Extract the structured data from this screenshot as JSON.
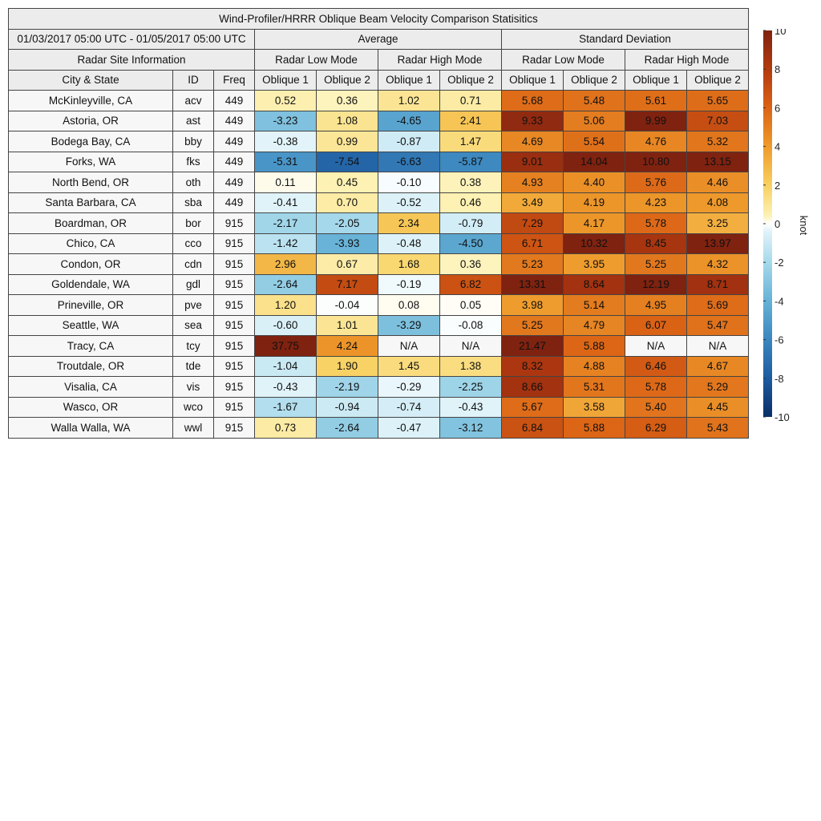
{
  "title": "Wind-Profiler/HRRR Oblique Beam Velocity Comparison Statisitics",
  "date_range": "01/03/2017 05:00 UTC - 01/05/2017 05:00 UTC",
  "group_headers": {
    "average": "Average",
    "std": "Standard Deviation",
    "site_info": "Radar Site Information"
  },
  "mode_headers": [
    "Radar Low Mode",
    "Radar High Mode",
    "Radar Low Mode",
    "Radar High Mode"
  ],
  "columns": [
    "City & State",
    "ID",
    "Freq",
    "Oblique 1",
    "Oblique 2",
    "Oblique 1",
    "Oblique 2",
    "Oblique 1",
    "Oblique 2",
    "Oblique 1",
    "Oblique 2"
  ],
  "colorbar": {
    "label": "knot",
    "min": -10,
    "max": 10,
    "ticks": [
      "10",
      "8",
      "6",
      "4",
      "2",
      "0",
      "-2",
      "-4",
      "-6",
      "-8",
      "-10"
    ]
  },
  "chart_data": {
    "type": "table",
    "title": "Wind-Profiler/HRRR Oblique Beam Velocity Comparison Statisitics",
    "rows": [
      {
        "city": "McKinleyville, CA",
        "id": "acv",
        "freq": "449",
        "values": [
          "0.52",
          "0.36",
          "1.02",
          "0.71",
          "5.68",
          "5.48",
          "5.61",
          "5.65"
        ]
      },
      {
        "city": "Astoria, OR",
        "id": "ast",
        "freq": "449",
        "values": [
          "-3.23",
          "1.08",
          "-4.65",
          "2.41",
          "9.33",
          "5.06",
          "9.99",
          "7.03"
        ]
      },
      {
        "city": "Bodega Bay, CA",
        "id": "bby",
        "freq": "449",
        "values": [
          "-0.38",
          "0.99",
          "-0.87",
          "1.47",
          "4.69",
          "5.54",
          "4.76",
          "5.32"
        ]
      },
      {
        "city": "Forks, WA",
        "id": "fks",
        "freq": "449",
        "values": [
          "-5.31",
          "-7.54",
          "-6.63",
          "-5.87",
          "9.01",
          "14.04",
          "10.80",
          "13.15"
        ]
      },
      {
        "city": "North Bend, OR",
        "id": "oth",
        "freq": "449",
        "values": [
          "0.11",
          "0.45",
          "-0.10",
          "0.38",
          "4.93",
          "4.40",
          "5.76",
          "4.46"
        ]
      },
      {
        "city": "Santa Barbara, CA",
        "id": "sba",
        "freq": "449",
        "values": [
          "-0.41",
          "0.70",
          "-0.52",
          "0.46",
          "3.49",
          "4.19",
          "4.23",
          "4.08"
        ]
      },
      {
        "city": "Boardman, OR",
        "id": "bor",
        "freq": "915",
        "values": [
          "-2.17",
          "-2.05",
          "2.34",
          "-0.79",
          "7.29",
          "4.17",
          "5.78",
          "3.25"
        ]
      },
      {
        "city": "Chico, CA",
        "id": "cco",
        "freq": "915",
        "values": [
          "-1.42",
          "-3.93",
          "-0.48",
          "-4.50",
          "6.71",
          "10.32",
          "8.45",
          "13.97"
        ]
      },
      {
        "city": "Condon, OR",
        "id": "cdn",
        "freq": "915",
        "values": [
          "2.96",
          "0.67",
          "1.68",
          "0.36",
          "5.23",
          "3.95",
          "5.25",
          "4.32"
        ]
      },
      {
        "city": "Goldendale, WA",
        "id": "gdl",
        "freq": "915",
        "values": [
          "-2.64",
          "7.17",
          "-0.19",
          "6.82",
          "13.31",
          "8.64",
          "12.19",
          "8.71"
        ]
      },
      {
        "city": "Prineville, OR",
        "id": "pve",
        "freq": "915",
        "values": [
          "1.20",
          "-0.04",
          "0.08",
          "0.05",
          "3.98",
          "5.14",
          "4.95",
          "5.69"
        ]
      },
      {
        "city": "Seattle, WA",
        "id": "sea",
        "freq": "915",
        "values": [
          "-0.60",
          "1.01",
          "-3.29",
          "-0.08",
          "5.25",
          "4.79",
          "6.07",
          "5.47"
        ]
      },
      {
        "city": "Tracy, CA",
        "id": "tcy",
        "freq": "915",
        "values": [
          "37.75",
          "4.24",
          "N/A",
          "N/A",
          "21.47",
          "5.88",
          "N/A",
          "N/A"
        ]
      },
      {
        "city": "Troutdale, OR",
        "id": "tde",
        "freq": "915",
        "values": [
          "-1.04",
          "1.90",
          "1.45",
          "1.38",
          "8.32",
          "4.88",
          "6.46",
          "4.67"
        ]
      },
      {
        "city": "Visalia, CA",
        "id": "vis",
        "freq": "915",
        "values": [
          "-0.43",
          "-2.19",
          "-0.29",
          "-2.25",
          "8.66",
          "5.31",
          "5.78",
          "5.29"
        ]
      },
      {
        "city": "Wasco, OR",
        "id": "wco",
        "freq": "915",
        "values": [
          "-1.67",
          "-0.94",
          "-0.74",
          "-0.43",
          "5.67",
          "3.58",
          "5.40",
          "4.45"
        ]
      },
      {
        "city": "Walla Walla, WA",
        "id": "wwl",
        "freq": "915",
        "values": [
          "0.73",
          "-2.64",
          "-0.47",
          "-3.12",
          "6.84",
          "5.88",
          "6.29",
          "5.43"
        ]
      }
    ]
  }
}
